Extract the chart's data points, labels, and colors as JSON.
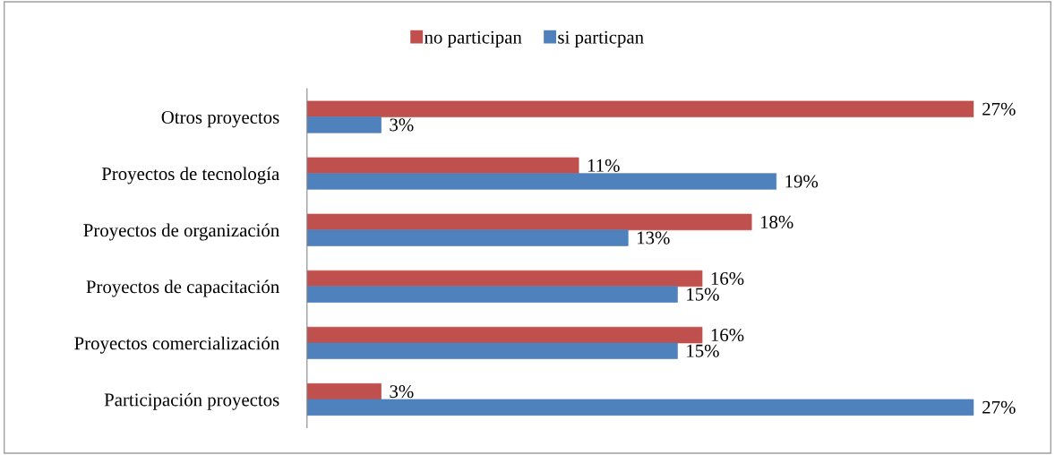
{
  "chart_data": {
    "type": "bar",
    "orientation": "horizontal",
    "legend": "top",
    "categories": [
      "Otros proyectos",
      "Proyectos de tecnología",
      "Proyectos de organización",
      "Proyectos de capacitación",
      "Proyectos comercialización",
      "Participación proyectos"
    ],
    "series": [
      {
        "name": "no participan",
        "color": "#c0504d",
        "values": [
          27,
          11,
          18,
          16,
          16,
          3
        ],
        "value_labels": [
          "27%",
          "11%",
          "18%",
          "16%",
          "16%",
          "3%"
        ]
      },
      {
        "name": "si particpan",
        "color": "#4f81bd",
        "values": [
          3,
          19,
          13,
          15,
          15,
          27
        ],
        "value_labels": [
          "3%",
          "19%",
          "13%",
          "15%",
          "15%",
          "27%"
        ]
      }
    ]
  }
}
